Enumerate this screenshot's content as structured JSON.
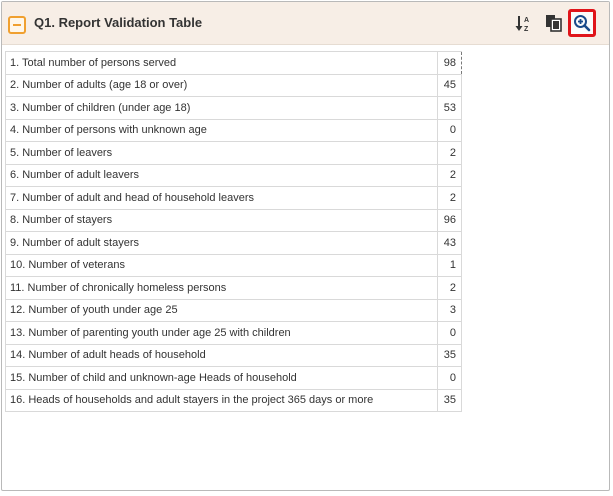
{
  "panel": {
    "title": "Q1. Report Validation Table",
    "icons": {
      "collapse": "minus-square-icon",
      "sort": "sort-az-icon",
      "copy": "copy-icon",
      "zoom": "zoom-in-icon"
    },
    "accent_color": "#f0a030",
    "highlight_color": "#e0141a"
  },
  "table": {
    "rows": [
      {
        "label": "1. Total number of persons served",
        "value": "98"
      },
      {
        "label": "2. Number of adults (age 18 or over)",
        "value": "45"
      },
      {
        "label": "3. Number of children (under age 18)",
        "value": "53"
      },
      {
        "label": "4. Number of persons with unknown age",
        "value": "0"
      },
      {
        "label": "5. Number of leavers",
        "value": "2"
      },
      {
        "label": "6. Number of adult leavers",
        "value": "2"
      },
      {
        "label": "7. Number of adult and head of household leavers",
        "value": "2"
      },
      {
        "label": "8. Number of stayers",
        "value": "96"
      },
      {
        "label": "9. Number of adult stayers",
        "value": "43"
      },
      {
        "label": "10. Number of veterans",
        "value": "1"
      },
      {
        "label": "11. Number of chronically homeless persons",
        "value": "2"
      },
      {
        "label": "12. Number of youth under age 25",
        "value": "3"
      },
      {
        "label": "13. Number of parenting youth under age 25 with children",
        "value": "0"
      },
      {
        "label": "14. Number of adult heads of household",
        "value": "35"
      },
      {
        "label": "15. Number of child and unknown-age Heads of household",
        "value": "0"
      },
      {
        "label": "16. Heads of households and adult stayers in the project 365 days or more",
        "value": "35"
      }
    ]
  }
}
